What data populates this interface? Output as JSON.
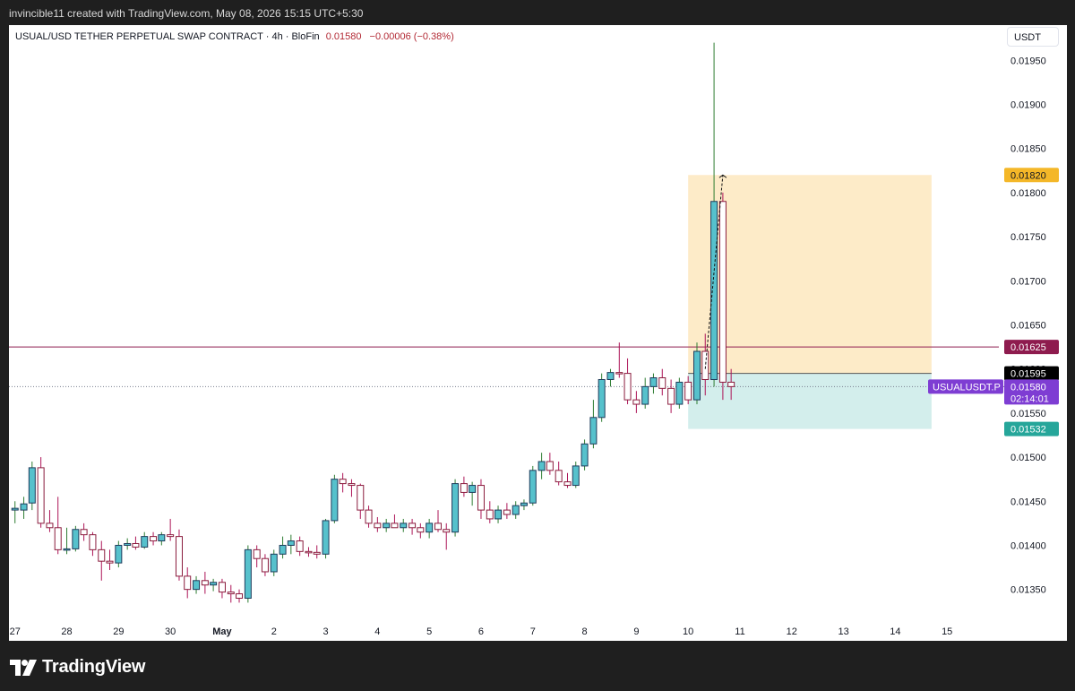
{
  "header": {
    "attribution": "invincible11 created with TradingView.com, May 08, 2026 15:15 UTC+5:30"
  },
  "legend": {
    "symbol": "USUAL/USD TETHER PERPETUAL SWAP CONTRACT · 4h · BloFin",
    "price": "0.01580",
    "change": "−0.00006 (−0.38%)"
  },
  "price_axis_unit": "USDT",
  "brand": "TradingView",
  "colors": {
    "up": "#56c1cc",
    "down": "#ffffff",
    "down_border": "#c2185b",
    "wick_up": "#2e7d32",
    "wick_down": "#ad1457",
    "target_zone": "#fdebc8",
    "stop_zone": "#d3eeec",
    "hline": "#8e1b4e",
    "last_price": "#7e3dd3",
    "target_label": "#f4b728",
    "stop_label": "#26a69a"
  },
  "chart_data": {
    "type": "candlestick",
    "timeframe": "4h",
    "y_axis": {
      "ticks": [
        "0.01350",
        "0.01400",
        "0.01450",
        "0.01500",
        "0.01550",
        "0.01600",
        "0.01650",
        "0.01700",
        "0.01750",
        "0.01800",
        "0.01850",
        "0.01900",
        "0.01950"
      ],
      "range": [
        0.0131,
        0.0199
      ]
    },
    "x_axis": {
      "labels": [
        "27",
        "28",
        "29",
        "30",
        "May",
        "2",
        "3",
        "4",
        "5",
        "6",
        "7",
        "8",
        "9",
        "10",
        "11",
        "12",
        "13",
        "14",
        "15"
      ],
      "range_days": [
        -0.03,
        19.0
      ]
    },
    "candles": [
      {
        "t": 0.0,
        "o": 0.0144,
        "h": 0.0145,
        "l": 0.01425,
        "c": 0.01442
      },
      {
        "t": 0.17,
        "o": 0.0144,
        "h": 0.01455,
        "l": 0.0143,
        "c": 0.01447
      },
      {
        "t": 0.33,
        "o": 0.01448,
        "h": 0.01495,
        "l": 0.0144,
        "c": 0.01488
      },
      {
        "t": 0.5,
        "o": 0.01488,
        "h": 0.015,
        "l": 0.0142,
        "c": 0.01425
      },
      {
        "t": 0.67,
        "o": 0.01425,
        "h": 0.0144,
        "l": 0.01415,
        "c": 0.0142
      },
      {
        "t": 0.83,
        "o": 0.0142,
        "h": 0.01455,
        "l": 0.0139,
        "c": 0.01395
      },
      {
        "t": 1.0,
        "o": 0.01395,
        "h": 0.0142,
        "l": 0.0139,
        "c": 0.01396
      },
      {
        "t": 1.17,
        "o": 0.01396,
        "h": 0.01422,
        "l": 0.01393,
        "c": 0.01418
      },
      {
        "t": 1.33,
        "o": 0.01418,
        "h": 0.01425,
        "l": 0.01405,
        "c": 0.01412
      },
      {
        "t": 1.5,
        "o": 0.01412,
        "h": 0.01415,
        "l": 0.01388,
        "c": 0.01395
      },
      {
        "t": 1.67,
        "o": 0.01395,
        "h": 0.01405,
        "l": 0.0136,
        "c": 0.01382
      },
      {
        "t": 1.83,
        "o": 0.01382,
        "h": 0.01395,
        "l": 0.01372,
        "c": 0.0138
      },
      {
        "t": 2.0,
        "o": 0.0138,
        "h": 0.01405,
        "l": 0.01375,
        "c": 0.014
      },
      {
        "t": 2.17,
        "o": 0.014,
        "h": 0.01408,
        "l": 0.01395,
        "c": 0.01402
      },
      {
        "t": 2.33,
        "o": 0.01402,
        "h": 0.0141,
        "l": 0.01395,
        "c": 0.01398
      },
      {
        "t": 2.5,
        "o": 0.01398,
        "h": 0.01415,
        "l": 0.01396,
        "c": 0.0141
      },
      {
        "t": 2.67,
        "o": 0.0141,
        "h": 0.01415,
        "l": 0.014,
        "c": 0.01405
      },
      {
        "t": 2.83,
        "o": 0.01405,
        "h": 0.01415,
        "l": 0.014,
        "c": 0.01412
      },
      {
        "t": 3.0,
        "o": 0.01412,
        "h": 0.0143,
        "l": 0.01405,
        "c": 0.0141
      },
      {
        "t": 3.17,
        "o": 0.0141,
        "h": 0.01418,
        "l": 0.0136,
        "c": 0.01365
      },
      {
        "t": 3.33,
        "o": 0.01365,
        "h": 0.01375,
        "l": 0.0134,
        "c": 0.0135
      },
      {
        "t": 3.5,
        "o": 0.0135,
        "h": 0.01365,
        "l": 0.01345,
        "c": 0.0136
      },
      {
        "t": 3.67,
        "o": 0.0136,
        "h": 0.0137,
        "l": 0.01345,
        "c": 0.01355
      },
      {
        "t": 3.83,
        "o": 0.01355,
        "h": 0.01362,
        "l": 0.01348,
        "c": 0.01358
      },
      {
        "t": 4.0,
        "o": 0.01358,
        "h": 0.01362,
        "l": 0.0134,
        "c": 0.01347
      },
      {
        "t": 4.17,
        "o": 0.01347,
        "h": 0.01355,
        "l": 0.01335,
        "c": 0.01345
      },
      {
        "t": 4.33,
        "o": 0.01345,
        "h": 0.0135,
        "l": 0.01335,
        "c": 0.0134
      },
      {
        "t": 4.5,
        "o": 0.0134,
        "h": 0.014,
        "l": 0.01335,
        "c": 0.01395
      },
      {
        "t": 4.67,
        "o": 0.01395,
        "h": 0.014,
        "l": 0.01375,
        "c": 0.01385
      },
      {
        "t": 4.83,
        "o": 0.01385,
        "h": 0.0139,
        "l": 0.01365,
        "c": 0.0137
      },
      {
        "t": 5.0,
        "o": 0.0137,
        "h": 0.01395,
        "l": 0.01365,
        "c": 0.0139
      },
      {
        "t": 5.17,
        "o": 0.0139,
        "h": 0.0141,
        "l": 0.01385,
        "c": 0.014
      },
      {
        "t": 5.33,
        "o": 0.014,
        "h": 0.01412,
        "l": 0.0139,
        "c": 0.01405
      },
      {
        "t": 5.5,
        "o": 0.01405,
        "h": 0.0141,
        "l": 0.01388,
        "c": 0.01393
      },
      {
        "t": 5.67,
        "o": 0.01393,
        "h": 0.01398,
        "l": 0.01387,
        "c": 0.01392
      },
      {
        "t": 5.83,
        "o": 0.01392,
        "h": 0.014,
        "l": 0.01385,
        "c": 0.0139
      },
      {
        "t": 6.0,
        "o": 0.0139,
        "h": 0.0143,
        "l": 0.01385,
        "c": 0.01428
      },
      {
        "t": 6.17,
        "o": 0.01428,
        "h": 0.0148,
        "l": 0.01425,
        "c": 0.01475
      },
      {
        "t": 6.33,
        "o": 0.01475,
        "h": 0.01482,
        "l": 0.0146,
        "c": 0.0147
      },
      {
        "t": 6.5,
        "o": 0.0147,
        "h": 0.01475,
        "l": 0.01455,
        "c": 0.01468
      },
      {
        "t": 6.67,
        "o": 0.01468,
        "h": 0.0147,
        "l": 0.0143,
        "c": 0.0144
      },
      {
        "t": 6.83,
        "o": 0.0144,
        "h": 0.01445,
        "l": 0.0142,
        "c": 0.01425
      },
      {
        "t": 7.0,
        "o": 0.01425,
        "h": 0.01432,
        "l": 0.01415,
        "c": 0.0142
      },
      {
        "t": 7.17,
        "o": 0.0142,
        "h": 0.0143,
        "l": 0.01415,
        "c": 0.01425
      },
      {
        "t": 7.33,
        "o": 0.01425,
        "h": 0.01435,
        "l": 0.0142,
        "c": 0.0142
      },
      {
        "t": 7.5,
        "o": 0.0142,
        "h": 0.0143,
        "l": 0.01415,
        "c": 0.01425
      },
      {
        "t": 7.67,
        "o": 0.01425,
        "h": 0.0143,
        "l": 0.01412,
        "c": 0.0142
      },
      {
        "t": 7.83,
        "o": 0.0142,
        "h": 0.01425,
        "l": 0.01408,
        "c": 0.01415
      },
      {
        "t": 8.0,
        "o": 0.01415,
        "h": 0.0143,
        "l": 0.01408,
        "c": 0.01425
      },
      {
        "t": 8.17,
        "o": 0.01425,
        "h": 0.0144,
        "l": 0.01415,
        "c": 0.01418
      },
      {
        "t": 8.33,
        "o": 0.01418,
        "h": 0.01425,
        "l": 0.01395,
        "c": 0.01415
      },
      {
        "t": 8.5,
        "o": 0.01415,
        "h": 0.01475,
        "l": 0.0141,
        "c": 0.0147
      },
      {
        "t": 8.67,
        "o": 0.0147,
        "h": 0.01478,
        "l": 0.01455,
        "c": 0.0146
      },
      {
        "t": 8.83,
        "o": 0.0146,
        "h": 0.01472,
        "l": 0.01445,
        "c": 0.01468
      },
      {
        "t": 9.0,
        "o": 0.01468,
        "h": 0.01475,
        "l": 0.0143,
        "c": 0.0144
      },
      {
        "t": 9.17,
        "o": 0.0144,
        "h": 0.0145,
        "l": 0.01425,
        "c": 0.0143
      },
      {
        "t": 9.33,
        "o": 0.0143,
        "h": 0.01445,
        "l": 0.01425,
        "c": 0.0144
      },
      {
        "t": 9.5,
        "o": 0.0144,
        "h": 0.01448,
        "l": 0.0143,
        "c": 0.01435
      },
      {
        "t": 9.67,
        "o": 0.01435,
        "h": 0.0145,
        "l": 0.0143,
        "c": 0.01445
      },
      {
        "t": 9.83,
        "o": 0.01445,
        "h": 0.01452,
        "l": 0.0144,
        "c": 0.01448
      },
      {
        "t": 10.0,
        "o": 0.01448,
        "h": 0.0149,
        "l": 0.01445,
        "c": 0.01485
      },
      {
        "t": 10.17,
        "o": 0.01485,
        "h": 0.01505,
        "l": 0.01475,
        "c": 0.01495
      },
      {
        "t": 10.33,
        "o": 0.01495,
        "h": 0.01505,
        "l": 0.0148,
        "c": 0.01485
      },
      {
        "t": 10.5,
        "o": 0.01485,
        "h": 0.01495,
        "l": 0.01468,
        "c": 0.01472
      },
      {
        "t": 10.67,
        "o": 0.01472,
        "h": 0.01482,
        "l": 0.01465,
        "c": 0.01468
      },
      {
        "t": 10.83,
        "o": 0.01468,
        "h": 0.01495,
        "l": 0.01465,
        "c": 0.0149
      },
      {
        "t": 11.0,
        "o": 0.0149,
        "h": 0.0152,
        "l": 0.01485,
        "c": 0.01515
      },
      {
        "t": 11.17,
        "o": 0.01515,
        "h": 0.01565,
        "l": 0.0151,
        "c": 0.01545
      },
      {
        "t": 11.33,
        "o": 0.01545,
        "h": 0.01595,
        "l": 0.0154,
        "c": 0.01588
      },
      {
        "t": 11.5,
        "o": 0.01588,
        "h": 0.016,
        "l": 0.0158,
        "c": 0.01596
      },
      {
        "t": 11.67,
        "o": 0.01596,
        "h": 0.0163,
        "l": 0.0159,
        "c": 0.01595
      },
      {
        "t": 11.83,
        "o": 0.01595,
        "h": 0.01612,
        "l": 0.0156,
        "c": 0.01565
      },
      {
        "t": 12.0,
        "o": 0.01565,
        "h": 0.01575,
        "l": 0.0155,
        "c": 0.0156
      },
      {
        "t": 12.17,
        "o": 0.0156,
        "h": 0.0159,
        "l": 0.01555,
        "c": 0.0158
      },
      {
        "t": 12.33,
        "o": 0.0158,
        "h": 0.01595,
        "l": 0.01572,
        "c": 0.0159
      },
      {
        "t": 12.5,
        "o": 0.0159,
        "h": 0.016,
        "l": 0.0157,
        "c": 0.01578
      },
      {
        "t": 12.67,
        "o": 0.01578,
        "h": 0.01588,
        "l": 0.0155,
        "c": 0.0156
      },
      {
        "t": 12.83,
        "o": 0.0156,
        "h": 0.0159,
        "l": 0.01555,
        "c": 0.01585
      },
      {
        "t": 13.0,
        "o": 0.01585,
        "h": 0.01592,
        "l": 0.0156,
        "c": 0.01565
      },
      {
        "t": 13.17,
        "o": 0.01565,
        "h": 0.0163,
        "l": 0.0156,
        "c": 0.0162
      },
      {
        "t": 13.33,
        "o": 0.0162,
        "h": 0.0164,
        "l": 0.0157,
        "c": 0.01588
      },
      {
        "t": 13.5,
        "o": 0.01588,
        "h": 0.0197,
        "l": 0.0158,
        "c": 0.0179
      },
      {
        "t": 13.67,
        "o": 0.0179,
        "h": 0.018,
        "l": 0.01565,
        "c": 0.01585
      },
      {
        "t": 13.83,
        "o": 0.01585,
        "h": 0.016,
        "l": 0.01565,
        "c": 0.0158
      }
    ],
    "horizontal_lines": [
      {
        "price": 0.01625,
        "label": "0.01625"
      }
    ],
    "position_tool": {
      "type": "short",
      "start_day": 13.0,
      "end_day": 17.7,
      "entry": 0.01595,
      "target": 0.01532,
      "stop": 0.0182
    },
    "labels": {
      "stop": "0.01820",
      "line": "0.01625",
      "entry": "0.01595",
      "last": "0.01580",
      "countdown": "02:14:01",
      "target": "0.01532",
      "ticker": "USUALUSDT.P"
    },
    "last_price": 0.0158
  }
}
